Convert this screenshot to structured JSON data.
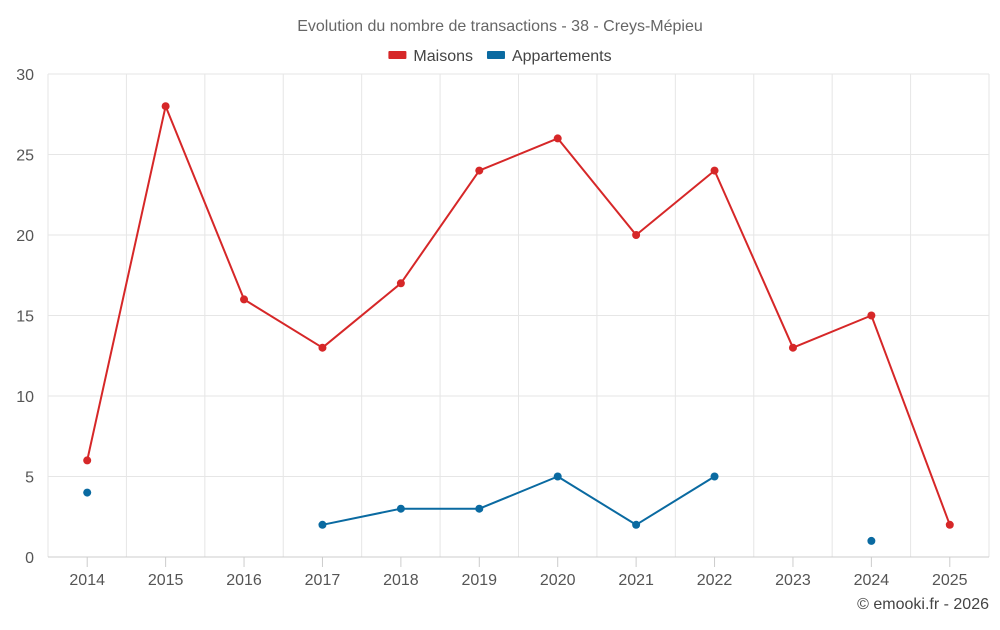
{
  "chart_data": {
    "type": "line",
    "title": "Evolution du nombre de transactions - 38 - Creys-Mépieu",
    "xlabel": "",
    "ylabel": "",
    "categories": [
      "2014",
      "2015",
      "2016",
      "2017",
      "2018",
      "2019",
      "2020",
      "2021",
      "2022",
      "2023",
      "2024",
      "2025"
    ],
    "ylim": [
      0,
      30
    ],
    "yticks": [
      0,
      5,
      10,
      15,
      20,
      25,
      30
    ],
    "grid": true,
    "legend_position": "top-center",
    "series": [
      {
        "name": "Maisons",
        "color": "#d62728",
        "values": [
          6,
          28,
          16,
          13,
          17,
          24,
          26,
          20,
          24,
          13,
          15,
          2
        ]
      },
      {
        "name": "Appartements",
        "color": "#0a6aa1",
        "values": [
          4,
          null,
          null,
          2,
          3,
          3,
          5,
          2,
          5,
          null,
          1,
          null
        ]
      }
    ],
    "credit": "© emooki.fr - 2026"
  }
}
